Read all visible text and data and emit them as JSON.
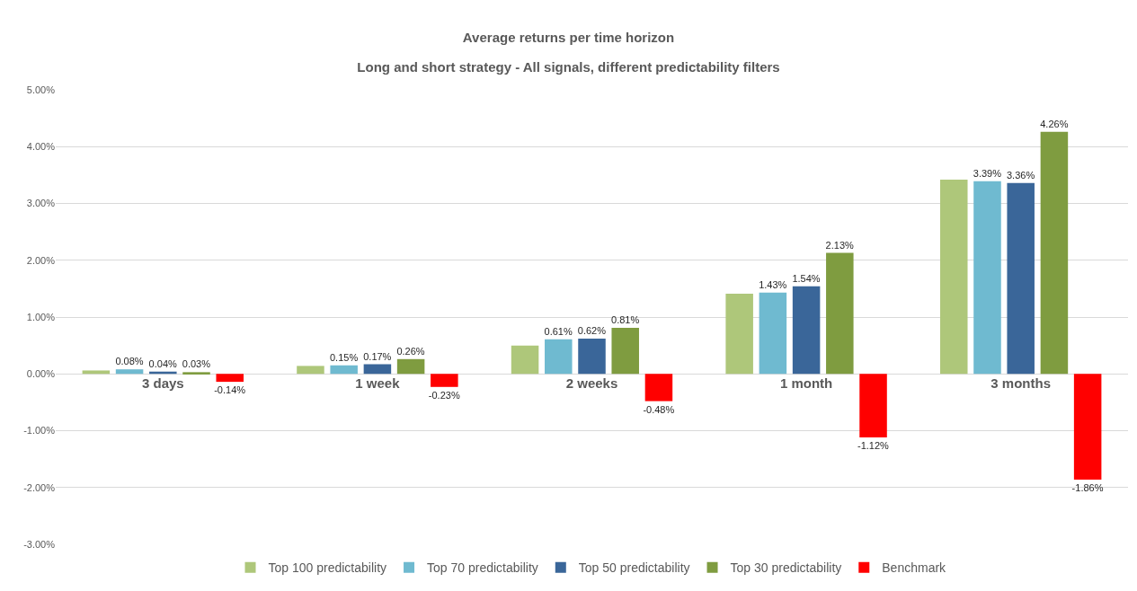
{
  "chart_data": {
    "type": "bar",
    "title": "Average returns per time horizon",
    "subtitle": "Long and short strategy - All signals, different predictability filters",
    "categories": [
      "3 days",
      "1 week",
      "2 weeks",
      "1 month",
      "3 months"
    ],
    "series": [
      {
        "name": "Top 100 predictability",
        "color": "#aec77a",
        "values": [
          0.06,
          0.14,
          0.5,
          1.41,
          3.42
        ]
      },
      {
        "name": "Top 70 predictability",
        "color": "#6fbad0",
        "values": [
          0.08,
          0.15,
          0.61,
          1.43,
          3.39
        ],
        "value_labels": [
          "0.08%",
          "0.15%",
          "0.61%",
          "1.43%",
          "3.39%"
        ]
      },
      {
        "name": "Top 50 predictability",
        "color": "#3a6699",
        "values": [
          0.04,
          0.17,
          0.62,
          1.54,
          3.36
        ],
        "value_labels": [
          "0.04%",
          "0.17%",
          "0.62%",
          "1.54%",
          "3.36%"
        ]
      },
      {
        "name": "Top 30 predictability",
        "color": "#7f9c40",
        "values": [
          0.03,
          0.26,
          0.81,
          2.13,
          4.26
        ],
        "value_labels": [
          "0.03%",
          "0.26%",
          "0.81%",
          "2.13%",
          "4.26%"
        ]
      },
      {
        "name": "Benchmark",
        "color": "#ff0000",
        "values": [
          -0.14,
          -0.23,
          -0.48,
          -1.12,
          -1.86
        ],
        "value_labels": [
          "-0.14%",
          "-0.23%",
          "-0.48%",
          "-1.12%",
          "-1.86%"
        ]
      }
    ],
    "ylim": [
      -3,
      5
    ],
    "yticks": [
      {
        "value": -3,
        "label": "-3.00%"
      },
      {
        "value": -2,
        "label": "-2.00%"
      },
      {
        "value": -1,
        "label": "-1.00%"
      },
      {
        "value": 0,
        "label": "0.00%"
      },
      {
        "value": 1,
        "label": "1.00%"
      },
      {
        "value": 2,
        "label": "2.00%"
      },
      {
        "value": 3,
        "label": "3.00%"
      },
      {
        "value": 4,
        "label": "4.00%"
      },
      {
        "value": 5,
        "label": "5.00%"
      }
    ],
    "grid": "y",
    "legend": "bottom"
  }
}
